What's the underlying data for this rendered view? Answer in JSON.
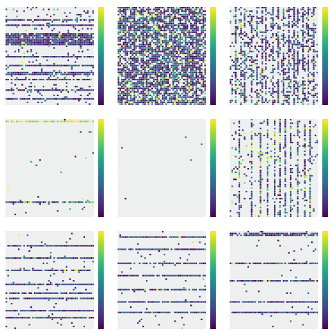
{
  "chart_data": [
    {
      "type": "heatmap",
      "panel": "r0c0",
      "pattern": "horizontal",
      "density": 0.18,
      "bright": 0.06,
      "dominant_rows": [
        7,
        10,
        15,
        16,
        17,
        18,
        19,
        20,
        21,
        28,
        33,
        37,
        38,
        41,
        47,
        52
      ],
      "dominant_cols": [],
      "colorbar": {
        "cmap": "viridis"
      }
    },
    {
      "type": "heatmap",
      "panel": "r0c1",
      "pattern": "dense",
      "density": 0.72,
      "bright": 0.18,
      "dominant_rows": [],
      "dominant_cols": [
        4,
        9,
        14,
        22,
        26,
        31,
        38,
        44
      ],
      "colorbar": {
        "cmap": "viridis"
      }
    },
    {
      "type": "heatmap",
      "panel": "r0c2",
      "pattern": "vertical",
      "density": 0.35,
      "bright": 0.15,
      "dominant_rows": [],
      "dominant_cols": [
        3,
        6,
        8,
        12,
        15,
        18,
        20,
        24,
        27,
        30,
        33,
        36,
        38,
        41,
        44,
        47,
        50
      ],
      "colorbar": {
        "cmap": "viridis"
      }
    },
    {
      "type": "heatmap",
      "panel": "r1c0",
      "pattern": "sparse-rows",
      "density": 0.02,
      "bright": 0.3,
      "dominant_rows": [
        1,
        47
      ],
      "dominant_cols": [],
      "colorbar": {
        "cmap": "viridis"
      }
    },
    {
      "type": "heatmap",
      "panel": "r1c1",
      "pattern": "nearly-empty",
      "density": 0.003,
      "bright": 0.0,
      "dominant_rows": [],
      "dominant_cols": [],
      "colorbar": {
        "cmap": "viridis"
      }
    },
    {
      "type": "heatmap",
      "panel": "r1c2",
      "pattern": "vertical",
      "density": 0.12,
      "bright": 0.25,
      "dominant_rows": [],
      "dominant_cols": [
        5,
        12,
        17,
        21,
        25,
        28,
        31,
        34,
        38,
        42,
        45
      ],
      "colorbar": {
        "cmap": "viridis"
      }
    },
    {
      "type": "heatmap",
      "panel": "r2c0",
      "pattern": "horizontal",
      "density": 0.05,
      "bright": 0.05,
      "dominant_rows": [
        8,
        15,
        22,
        30,
        35,
        38,
        45,
        49
      ],
      "dominant_cols": [],
      "colorbar": {
        "cmap": "viridis"
      }
    },
    {
      "type": "heatmap",
      "panel": "r2c1",
      "pattern": "horizontal",
      "density": 0.04,
      "bright": 0.05,
      "dominant_rows": [
        3,
        10,
        18,
        25,
        33,
        40,
        46
      ],
      "dominant_cols": [],
      "colorbar": {
        "cmap": "viridis"
      }
    },
    {
      "type": "heatmap",
      "panel": "r2c2",
      "pattern": "horizontal",
      "density": 0.03,
      "bright": 0.05,
      "dominant_rows": [
        1,
        2,
        18,
        28,
        40,
        46
      ],
      "dominant_cols": [],
      "colorbar": {
        "cmap": "viridis"
      }
    }
  ],
  "colors": {
    "viridis": [
      "#440154",
      "#482878",
      "#3e4989",
      "#31688e",
      "#26828e",
      "#1f9e89",
      "#35b779",
      "#6ece58",
      "#b5de2b",
      "#fde725"
    ],
    "empty_cell": "#eef0f0",
    "grid_line": "#ffffff"
  }
}
